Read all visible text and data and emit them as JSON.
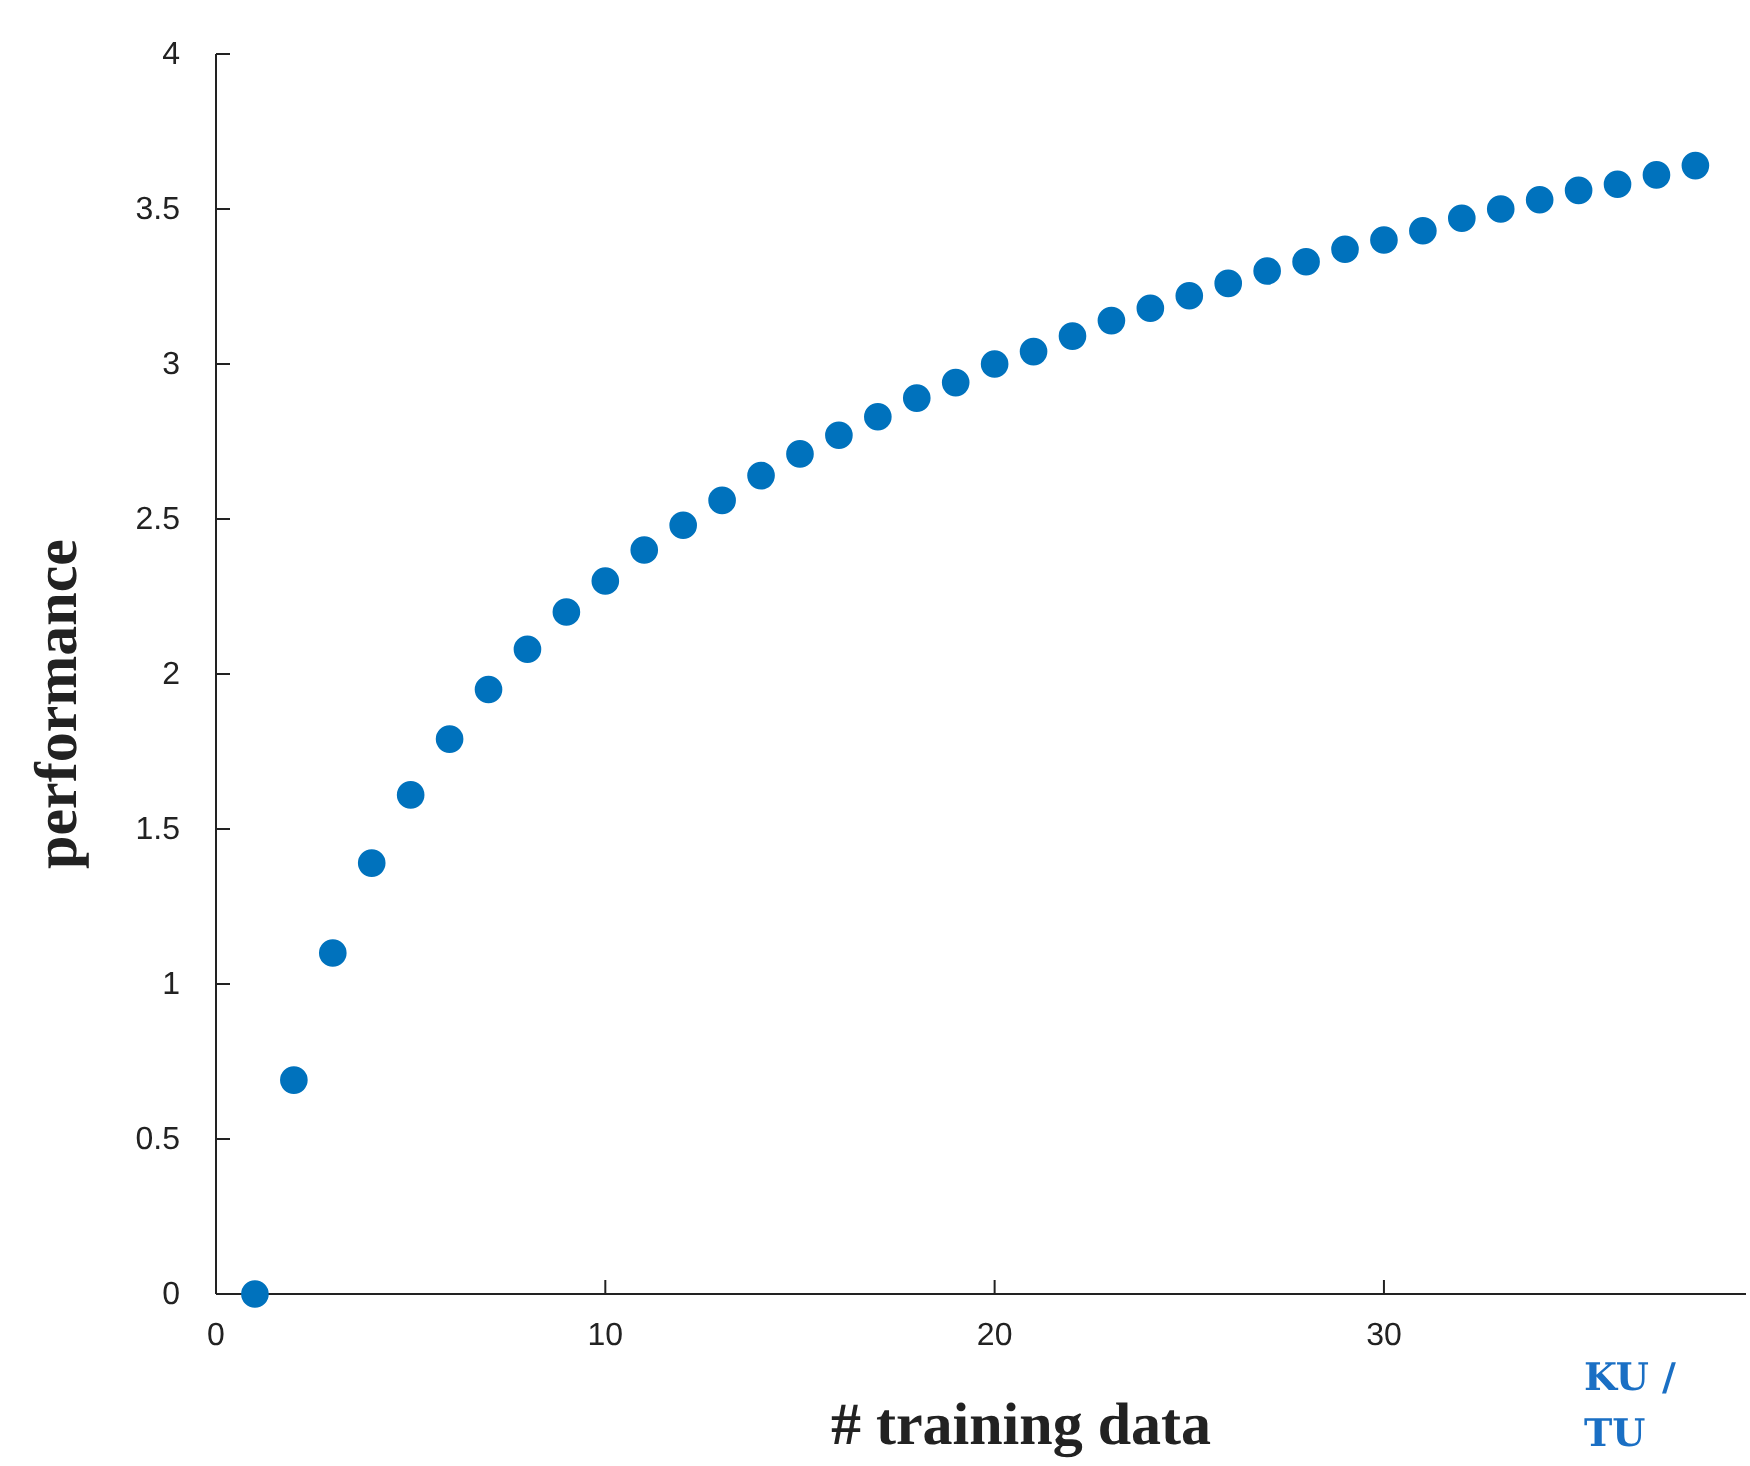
{
  "chart_data": {
    "type": "scatter",
    "xlabel": "# training data",
    "ylabel": "performance",
    "x": [
      1,
      2,
      3,
      4,
      5,
      6,
      7,
      8,
      9,
      10,
      11,
      12,
      13,
      14,
      15,
      16,
      17,
      18,
      19,
      20,
      21,
      22,
      23,
      24,
      25,
      26,
      27,
      28,
      29,
      30,
      31,
      32,
      33,
      34,
      35,
      36,
      37,
      38
    ],
    "series": [
      {
        "color": "#0072bd",
        "values": [
          0,
          0.69,
          1.1,
          1.39,
          1.61,
          1.79,
          1.95,
          2.08,
          2.2,
          2.3,
          2.4,
          2.48,
          2.56,
          2.64,
          2.71,
          2.77,
          2.83,
          2.89,
          2.94,
          3.0,
          3.04,
          3.09,
          3.14,
          3.18,
          3.22,
          3.26,
          3.3,
          3.33,
          3.37,
          3.4,
          3.43,
          3.47,
          3.5,
          3.53,
          3.56,
          3.58,
          3.61,
          3.64
        ]
      }
    ],
    "xlim": [
      0,
      39.3
    ],
    "ylim": [
      0,
      4
    ],
    "xticks": [
      0,
      10,
      20,
      30
    ],
    "yticks": [
      0,
      0.5,
      1,
      1.5,
      2,
      2.5,
      3,
      3.5,
      4
    ],
    "marker": "circle",
    "grid": false,
    "annotations": [
      "KU /\nTU"
    ]
  }
}
